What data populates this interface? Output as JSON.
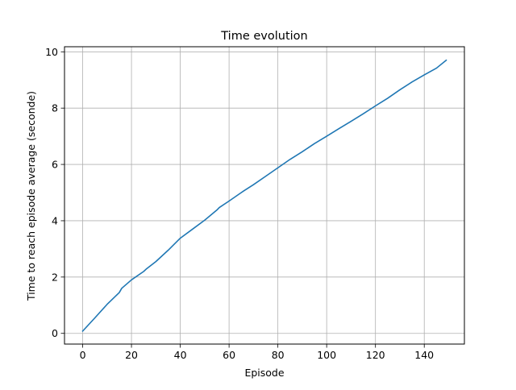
{
  "chart_data": {
    "type": "line",
    "title": "Time evolution",
    "xlabel": "Episode",
    "ylabel": "Time to reach episode average (seconde)",
    "xlim": [
      -7.45,
      156.45
    ],
    "ylim": [
      -0.38,
      10.18
    ],
    "xticks": [
      0,
      20,
      40,
      60,
      80,
      100,
      120,
      140
    ],
    "yticks": [
      0,
      2,
      4,
      6,
      8,
      10
    ],
    "grid": true,
    "line_color": "#1f77b4",
    "series": [
      {
        "x": [
          0,
          5,
          10,
          15,
          16,
          20,
          25,
          26,
          30,
          35,
          40,
          45,
          50,
          55,
          56,
          60,
          65,
          66,
          70,
          75,
          80,
          85,
          90,
          95,
          100,
          105,
          110,
          115,
          120,
          125,
          130,
          135,
          140,
          145,
          149
        ],
        "y": [
          0.08,
          0.55,
          1.03,
          1.45,
          1.6,
          1.9,
          2.2,
          2.28,
          2.55,
          2.95,
          3.38,
          3.7,
          4.02,
          4.38,
          4.47,
          4.7,
          5.0,
          5.06,
          5.28,
          5.58,
          5.88,
          6.18,
          6.45,
          6.74,
          7.0,
          7.27,
          7.53,
          7.8,
          8.08,
          8.35,
          8.65,
          8.93,
          9.18,
          9.42,
          9.7
        ]
      }
    ]
  }
}
